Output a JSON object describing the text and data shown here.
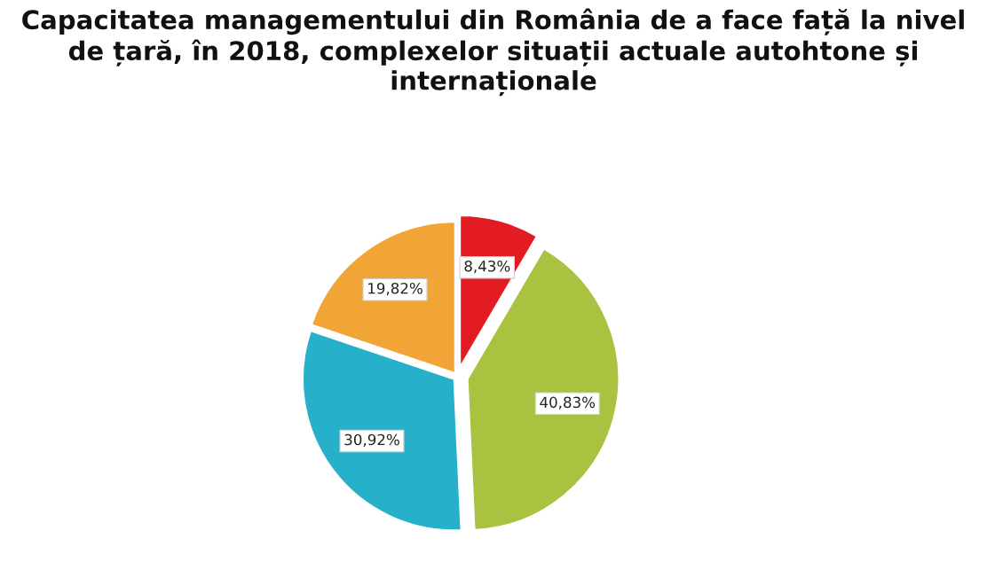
{
  "chart_data": {
    "type": "pie",
    "title": "Capacitatea managementului din România de a face față la nivel de țară, în 2018, complexelor situații actuale autohtone și internaționale",
    "categories": [
      null,
      null,
      null,
      null
    ],
    "values": [
      8.43,
      40.83,
      30.92,
      19.82
    ],
    "colors": [
      "#e31b23",
      "#a9c23f",
      "#26b0c9",
      "#f2a537"
    ],
    "value_labels": [
      "8,43%",
      "40,83%",
      "30,92%",
      "19,82%"
    ]
  }
}
